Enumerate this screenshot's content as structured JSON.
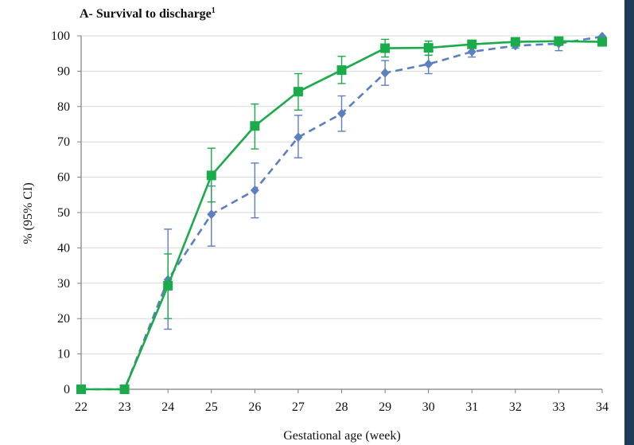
{
  "chart_data": {
    "type": "line",
    "title": "A- Survival to discharge",
    "title_superscript": "1",
    "xlabel": "Gestational age (week)",
    "ylabel": "% (95% CI)",
    "x": [
      22,
      23,
      24,
      25,
      26,
      27,
      28,
      29,
      30,
      31,
      32,
      33,
      34
    ],
    "xlim": [
      22,
      34
    ],
    "ylim": [
      0,
      100
    ],
    "yticks": [
      0,
      10,
      20,
      30,
      40,
      50,
      60,
      70,
      80,
      90,
      100
    ],
    "grid": true,
    "series": [
      {
        "color": "#1aab4a",
        "line_style": "solid",
        "marker": "square",
        "values": [
          0,
          0,
          29.3,
          60.5,
          74.5,
          84.2,
          90.3,
          96.5,
          96.6,
          97.6,
          98.3,
          98.5,
          98.3
        ],
        "ci_low": [
          null,
          null,
          20,
          53,
          68,
          79,
          86.5,
          94,
          94.5,
          null,
          null,
          null,
          null
        ],
        "ci_high": [
          null,
          null,
          38.3,
          68.2,
          80.7,
          89.3,
          94.2,
          99,
          98.5,
          null,
          null,
          null,
          null
        ]
      },
      {
        "color": "#5b7fc0",
        "line_style": "dashed",
        "marker": "diamond",
        "values": [
          0,
          0,
          31,
          49.5,
          56.3,
          71.3,
          78,
          89.5,
          92,
          95.5,
          97.2,
          97.8,
          99.8
        ],
        "ci_low": [
          null,
          null,
          17,
          40.5,
          48.5,
          65.5,
          73,
          86,
          89.3,
          94,
          96.5,
          95.8,
          null
        ],
        "ci_high": [
          null,
          null,
          45.3,
          57.5,
          64,
          77.5,
          83,
          93,
          94.5,
          97.3,
          98.3,
          98.5,
          null
        ]
      }
    ]
  }
}
